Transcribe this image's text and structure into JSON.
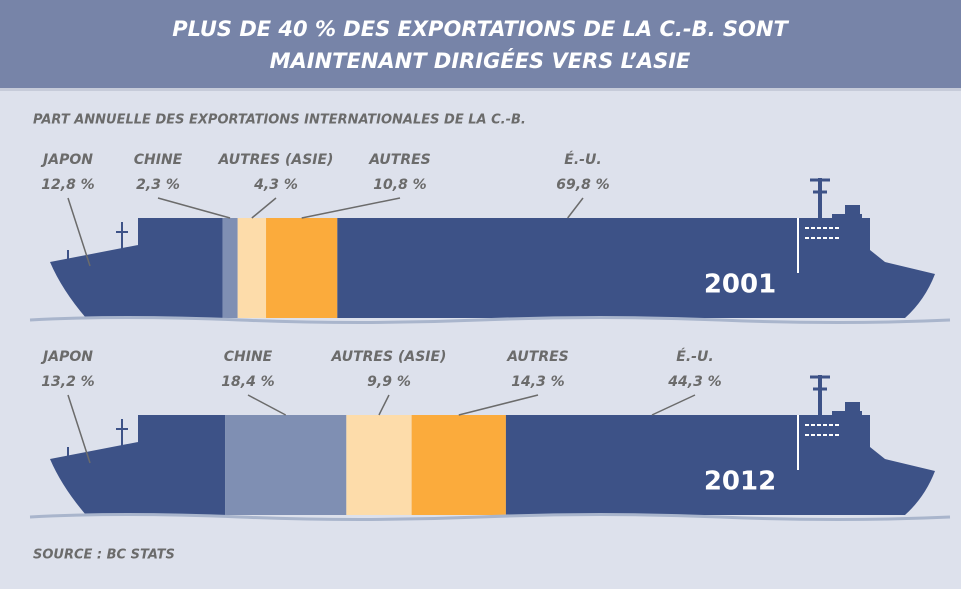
{
  "chart_data": {
    "type": "stacked_bar",
    "title": [
      "PLUS DE 40 % DES EXPORTATIONS DE LA C.-B. SONT",
      "MAINTENANT DIRIGÉES VERS L’ASIE"
    ],
    "subtitle": "PART ANNUELLE DES EXPORTATIONS INTERNATIONALES DE LA C.-B.",
    "source": "SOURCE : BC STATS",
    "categories": [
      "2001",
      "2012"
    ],
    "series": [
      {
        "name": "JAPON",
        "color": "#3d5287",
        "values": [
          12.8,
          13.2
        ],
        "value_labels": [
          "12,8 %",
          "13,2 %"
        ]
      },
      {
        "name": "CHINE",
        "color": "#7f8fb3",
        "values": [
          2.3,
          18.4
        ],
        "value_labels": [
          "2,3 %",
          "18,4 %"
        ]
      },
      {
        "name": "AUTRES (ASIE)",
        "color": "#fddcaa",
        "values": [
          4.3,
          9.9
        ],
        "value_labels": [
          "4,3 %",
          "9,9 %"
        ]
      },
      {
        "name": "AUTRES",
        "color": "#fbab3c",
        "values": [
          10.8,
          14.3
        ],
        "value_labels": [
          "10,8 %",
          "14,3 %"
        ]
      },
      {
        "name": "É.-U.",
        "color": "#3d5287",
        "values": [
          69.8,
          44.3
        ],
        "value_labels": [
          "69,8 %",
          "44,3 %"
        ]
      }
    ]
  }
}
